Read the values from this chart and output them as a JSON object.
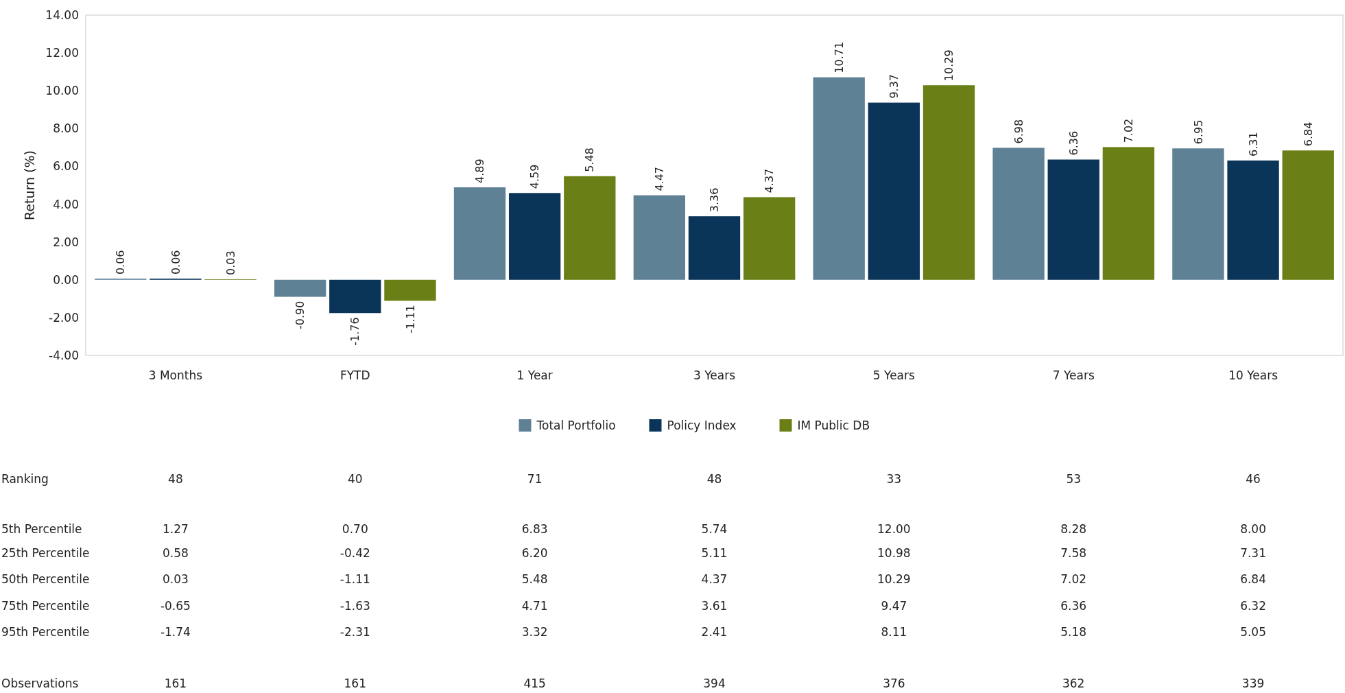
{
  "chart_data": [
    {
      "type": "bar",
      "ylabel": "Return (%)",
      "categories": [
        "3 Months",
        "FYTD",
        "1 Year",
        "3 Years",
        "5 Years",
        "7 Years",
        "10 Years"
      ],
      "series": [
        {
          "name": "Total Portfolio",
          "color": "#5f8196",
          "values": [
            0.06,
            -0.9,
            4.89,
            4.47,
            10.71,
            6.98,
            6.95
          ]
        },
        {
          "name": "Policy Index",
          "color": "#0b3558",
          "values": [
            0.06,
            -1.76,
            4.59,
            3.36,
            9.37,
            6.36,
            6.31
          ]
        },
        {
          "name": "IM Public DB",
          "color": "#6b7f17",
          "values": [
            0.03,
            -1.11,
            5.48,
            4.37,
            10.29,
            7.02,
            6.84
          ]
        }
      ],
      "ylim": [
        -4,
        14
      ],
      "yticks": [
        {
          "value": -4,
          "label": "-4.00"
        },
        {
          "value": -2,
          "label": "-2.00"
        },
        {
          "value": 0,
          "label": "0.00"
        },
        {
          "value": 2,
          "label": "2.00"
        },
        {
          "value": 4,
          "label": "4.00"
        },
        {
          "value": 6,
          "label": "6.00"
        },
        {
          "value": 8,
          "label": "8.00"
        },
        {
          "value": 10,
          "label": "10.00"
        },
        {
          "value": 12,
          "label": "12.00"
        },
        {
          "value": 14,
          "label": "14.00"
        }
      ],
      "value_labels": [
        [
          "0.06",
          "-0.90",
          "4.89",
          "4.47",
          "10.71",
          "6.98",
          "6.95"
        ],
        [
          "0.06",
          "-1.76",
          "4.59",
          "3.36",
          "9.37",
          "6.36",
          "6.31"
        ],
        [
          "0.03",
          "-1.11",
          "5.48",
          "4.37",
          "10.29",
          "7.02",
          "6.84"
        ]
      ],
      "grid": false,
      "legend": "bottom"
    },
    {
      "type": "other",
      "y_categories": [
        "Ranking",
        "5th Percentile",
        "25th Percentile",
        "50th Percentile",
        "75th Percentile",
        "95th Percentile",
        "Observations"
      ],
      "cell_labels": [
        [
          "48",
          "40",
          "71",
          "48",
          "33",
          "53",
          "46"
        ],
        [
          "1.27",
          "0.70",
          "6.83",
          "5.74",
          "12.00",
          "8.28",
          "8.00"
        ],
        [
          "0.58",
          "-0.42",
          "6.20",
          "5.11",
          "10.98",
          "7.58",
          "7.31"
        ],
        [
          "0.03",
          "-1.11",
          "5.48",
          "4.37",
          "10.29",
          "7.02",
          "6.84"
        ],
        [
          "-0.65",
          "-1.63",
          "4.71",
          "3.61",
          "9.47",
          "6.36",
          "6.32"
        ],
        [
          "-1.74",
          "-2.31",
          "3.32",
          "2.41",
          "8.11",
          "5.18",
          "5.05"
        ],
        [
          "161",
          "161",
          "415",
          "394",
          "376",
          "362",
          "339"
        ]
      ]
    }
  ]
}
